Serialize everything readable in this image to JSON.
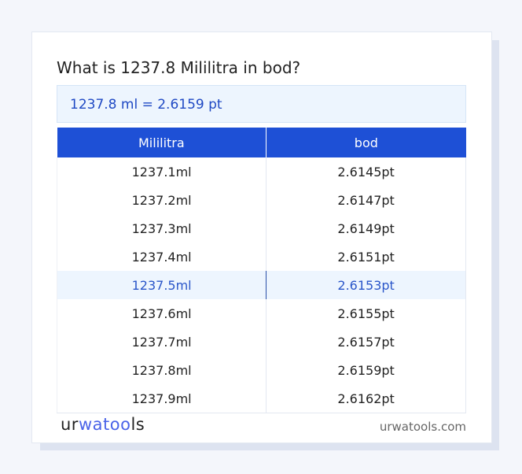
{
  "title": "What is 1237.8 Mililitra in bod?",
  "result": "1237.8 ml = 2.6159 pt",
  "table": {
    "headers": [
      "Mililitra",
      "bod"
    ],
    "rows": [
      [
        "1237.1ml",
        "2.6145pt"
      ],
      [
        "1237.2ml",
        "2.6147pt"
      ],
      [
        "1237.3ml",
        "2.6149pt"
      ],
      [
        "1237.4ml",
        "2.6151pt"
      ],
      [
        "1237.5ml",
        "2.6153pt"
      ],
      [
        "1237.6ml",
        "2.6155pt"
      ],
      [
        "1237.7ml",
        "2.6157pt"
      ],
      [
        "1237.8ml",
        "2.6159pt"
      ],
      [
        "1237.9ml",
        "2.6162pt"
      ]
    ],
    "highlighted_row": 4
  },
  "footer": {
    "logo_a": "ur",
    "logo_b": "wat",
    "logo_c": "oo",
    "logo_d": "ls",
    "site": "urwatools.com"
  },
  "colors": {
    "accent": "#1e50d6",
    "highlight_bg": "#edf5fe"
  }
}
